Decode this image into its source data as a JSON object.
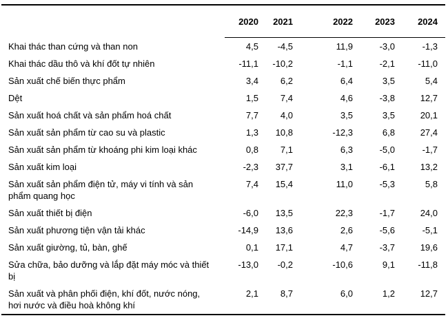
{
  "colors": {
    "background": "#ffffff",
    "text": "#000000",
    "rule": "#000000"
  },
  "table": {
    "year_columns": [
      "2020",
      "2021",
      "2022",
      "2023",
      "2024"
    ],
    "rows": [
      {
        "label": "Khai thác than cứng và than non",
        "values": [
          "4,5",
          "-4,5",
          "11,9",
          "-3,0",
          "-1,3"
        ]
      },
      {
        "label": "Khai thác dầu thô và khí đốt tự nhiên",
        "values": [
          "-11,1",
          "-10,2",
          "-1,1",
          "-2,1",
          "-11,0"
        ]
      },
      {
        "label": "Sản xuất chế biến thực phẩm",
        "values": [
          "3,4",
          "6,2",
          "6,4",
          "3,5",
          "5,4"
        ]
      },
      {
        "label": "Dệt",
        "values": [
          "1,5",
          "7,4",
          "4,6",
          "-3,8",
          "12,7"
        ]
      },
      {
        "label": "Sản xuất hoá chất và sản phẩm hoá chất",
        "values": [
          "7,7",
          "4,0",
          "3,5",
          "3,5",
          "20,1"
        ]
      },
      {
        "label": "Sản xuất sản phẩm từ cao su và plastic",
        "values": [
          "1,3",
          "10,8",
          "-12,3",
          "6,8",
          "27,4"
        ]
      },
      {
        "label": "Sản xuất sản phẩm từ khoáng phi kim loại khác",
        "values": [
          "0,8",
          "7,1",
          "6,3",
          "-5,0",
          "-1,7"
        ]
      },
      {
        "label": "Sản xuất kim loại",
        "values": [
          "-2,3",
          "37,7",
          "3,1",
          "-6,1",
          "13,2"
        ]
      },
      {
        "label": "Sản xuất sản phẩm điện tử, máy vi tính và sản phẩm quang học",
        "values": [
          "7,4",
          "15,4",
          "11,0",
          "-5,3",
          "5,8"
        ]
      },
      {
        "label": "Sản xuất thiết bị điện",
        "values": [
          "-6,0",
          "13,5",
          "22,3",
          "-1,7",
          "24,0"
        ]
      },
      {
        "label": "Sản xuất phương tiện vận tải khác",
        "values": [
          "-14,9",
          "13,6",
          "2,6",
          "-5,6",
          "-5,1"
        ]
      },
      {
        "label": "Sản xuất giường, tủ, bàn, ghế",
        "values": [
          "0,1",
          "17,1",
          "4,7",
          "-3,7",
          "19,6"
        ]
      },
      {
        "label": "Sửa chữa, bảo dưỡng và lắp đặt máy móc và thiết bị",
        "values": [
          "-13,0",
          "-0,2",
          "-10,6",
          "9,1",
          "-11,8"
        ]
      },
      {
        "label": "Sản xuất và phân phối điện, khí đốt, nước nóng, hơi nước và điều hoà không khí",
        "values": [
          "2,1",
          "8,7",
          "6,0",
          "1,2",
          "12,7"
        ]
      }
    ]
  }
}
